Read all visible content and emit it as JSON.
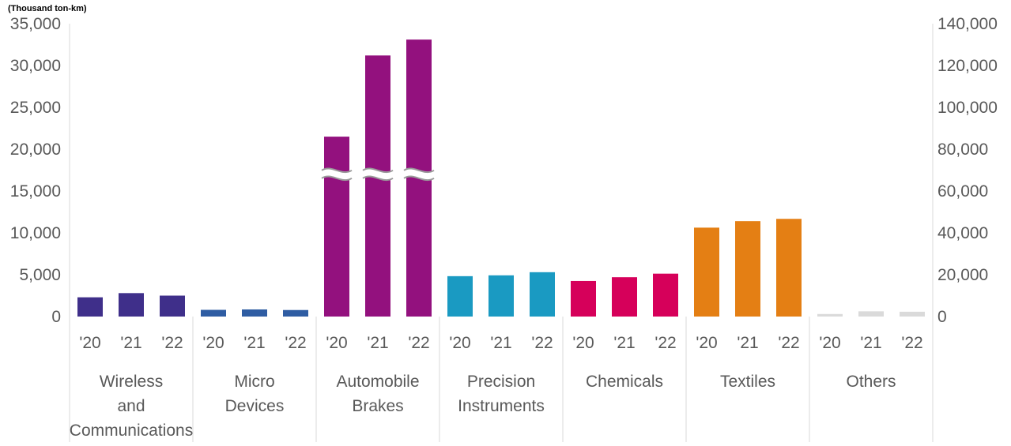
{
  "chart_data": {
    "type": "bar",
    "unit_label": "(Thousand ton-km)",
    "left_axis": {
      "min": 0,
      "max": 35000,
      "step": 5000,
      "tick_labels": [
        "0",
        "5,000",
        "10,000",
        "15,000",
        "20,000",
        "25,000",
        "30,000",
        "35,000"
      ]
    },
    "right_axis": {
      "min": 0,
      "max": 140000,
      "step": 20000,
      "tick_labels": [
        "0",
        "20,000",
        "40,000",
        "60,000",
        "80,000",
        "100,000",
        "120,000",
        "140,000"
      ]
    },
    "years": [
      "'20",
      "'21",
      "'22"
    ],
    "axis_break": {
      "series": "Automobile Brakes",
      "left_axis_value": 17000
    },
    "groups": [
      {
        "name": "Wireless and Communications",
        "label_lines": [
          "Wireless",
          "and",
          "Communications"
        ],
        "color": "#3F2F8A",
        "axis": "left",
        "values": [
          2300,
          2800,
          2500
        ]
      },
      {
        "name": "Micro Devices",
        "label_lines": [
          "Micro",
          "Devices"
        ],
        "color": "#2F5DA3",
        "axis": "left",
        "values": [
          800,
          850,
          780
        ]
      },
      {
        "name": "Automobile Brakes",
        "label_lines": [
          "Automobile",
          "Brakes"
        ],
        "color": "#93117E",
        "axis": "left",
        "values": [
          21500,
          31200,
          33100
        ]
      },
      {
        "name": "Precision Instruments",
        "label_lines": [
          "Precision",
          "Instruments"
        ],
        "color": "#1A9AC2",
        "axis": "right",
        "values": [
          19300,
          19700,
          21200
        ]
      },
      {
        "name": "Chemicals",
        "label_lines": [
          "Chemicals"
        ],
        "color": "#D6005A",
        "axis": "right",
        "values": [
          17000,
          18800,
          20500
        ]
      },
      {
        "name": "Textiles",
        "label_lines": [
          "Textiles"
        ],
        "color": "#E47F14",
        "axis": "right",
        "values": [
          42500,
          45600,
          46700
        ]
      },
      {
        "name": "Others",
        "label_lines": [
          "Others"
        ],
        "color": "#DADADA",
        "axis": "right",
        "values": [
          1200,
          2500,
          2300
        ]
      }
    ]
  }
}
